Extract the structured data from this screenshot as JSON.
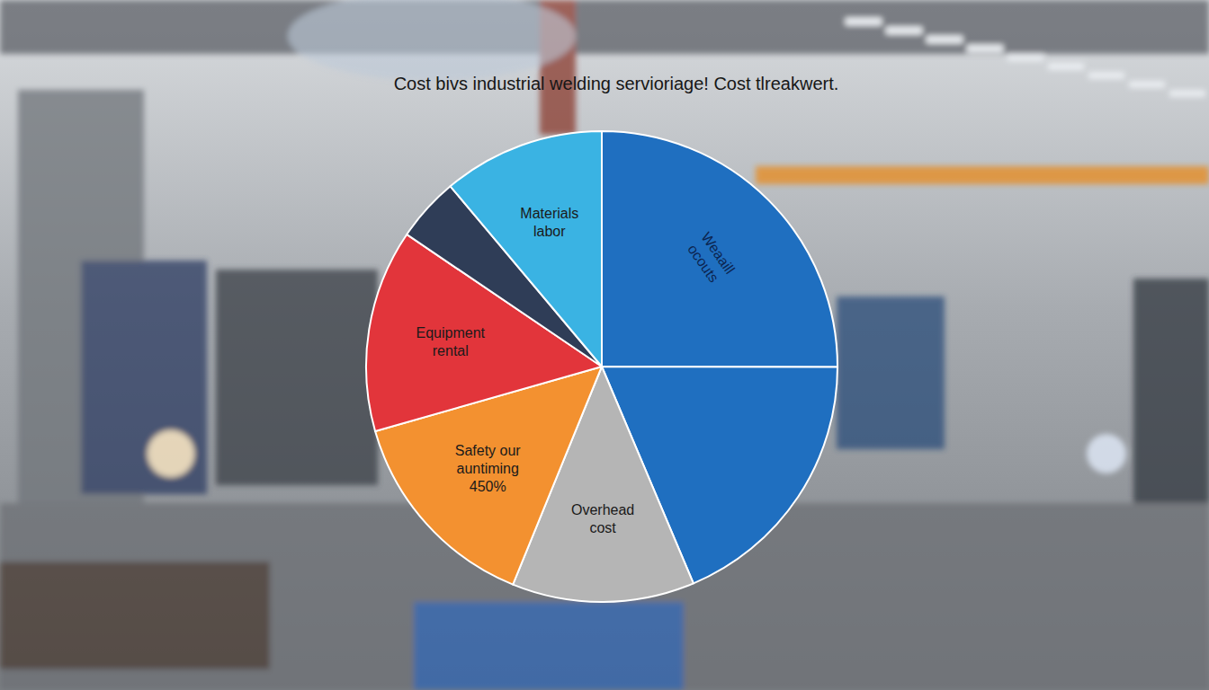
{
  "chart_data": {
    "type": "pie",
    "title": "Cost bivs industrial welding servioriage! Cost tlreakwert.",
    "categories": [
      "Weaaill ocouts",
      null,
      "Overhead cost",
      "Safety our auntiming 450%",
      "Equipment rental",
      null,
      "Materials labor"
    ],
    "values": [
      25,
      18.6,
      12.5,
      14.4,
      13.9,
      4.4,
      11.1
    ],
    "colors": [
      "#1f6fc0",
      "#1f6fc0",
      "#b5b5b5",
      "#f39130",
      "#e2353b",
      "#2f3d57",
      "#3ab3e3"
    ]
  }
}
